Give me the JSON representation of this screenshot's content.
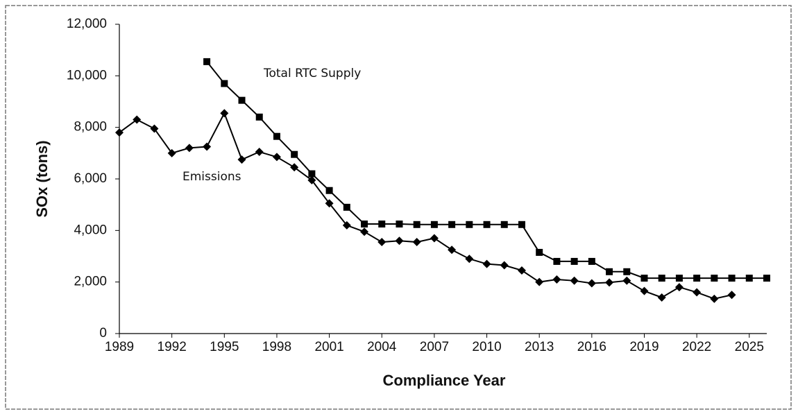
{
  "chart_data": {
    "type": "line",
    "xlabel": "Compliance Year",
    "ylabel": "SOx (tons)",
    "x": [
      1989,
      1990,
      1991,
      1992,
      1993,
      1994,
      1995,
      1996,
      1997,
      1998,
      1999,
      2000,
      2001,
      2002,
      2003,
      2004,
      2005,
      2006,
      2007,
      2008,
      2009,
      2010,
      2011,
      2012,
      2013,
      2014,
      2015,
      2016,
      2017,
      2018,
      2019,
      2020,
      2021,
      2022,
      2023,
      2024,
      2025,
      2026
    ],
    "series": [
      {
        "name": "Emissions",
        "color": "#000000",
        "marker": "diamond",
        "values": [
          7800,
          8300,
          7950,
          7000,
          7200,
          7250,
          8550,
          6750,
          7050,
          6850,
          6450,
          5950,
          5050,
          4200,
          3950,
          3550,
          3600,
          3550,
          3700,
          3250,
          2900,
          2700,
          2650,
          2450,
          2000,
          2100,
          2050,
          1950,
          1980,
          2050,
          1650,
          1400,
          1800,
          1600,
          1350,
          1500,
          null,
          null
        ]
      },
      {
        "name": "Total RTC Supply",
        "color": "#000000",
        "marker": "square",
        "values": [
          null,
          null,
          null,
          null,
          null,
          10550,
          9700,
          9050,
          8400,
          7650,
          6950,
          6200,
          5550,
          4900,
          4250,
          4250,
          4250,
          4230,
          4230,
          4230,
          4230,
          4230,
          4230,
          4230,
          3150,
          2800,
          2800,
          2800,
          2400,
          2400,
          2150,
          2150,
          2150,
          2150,
          2150,
          2150,
          2150,
          2150
        ]
      }
    ],
    "xlim": [
      1989,
      2026
    ],
    "xticks": [
      1989,
      1992,
      1995,
      1998,
      2001,
      2004,
      2007,
      2010,
      2013,
      2016,
      2019,
      2022,
      2025
    ],
    "ylim": [
      0,
      12000
    ],
    "yticks": [
      0,
      {
        "value": 2000,
        "label": "2,000"
      },
      {
        "value": 4000,
        "label": "4,000"
      },
      {
        "value": 6000,
        "label": "6,000"
      },
      {
        "value": 8000,
        "label": "8,000"
      },
      {
        "value": 10000,
        "label": "10,000"
      },
      {
        "value": 12000,
        "label": "12,000"
      }
    ],
    "grid": false
  }
}
